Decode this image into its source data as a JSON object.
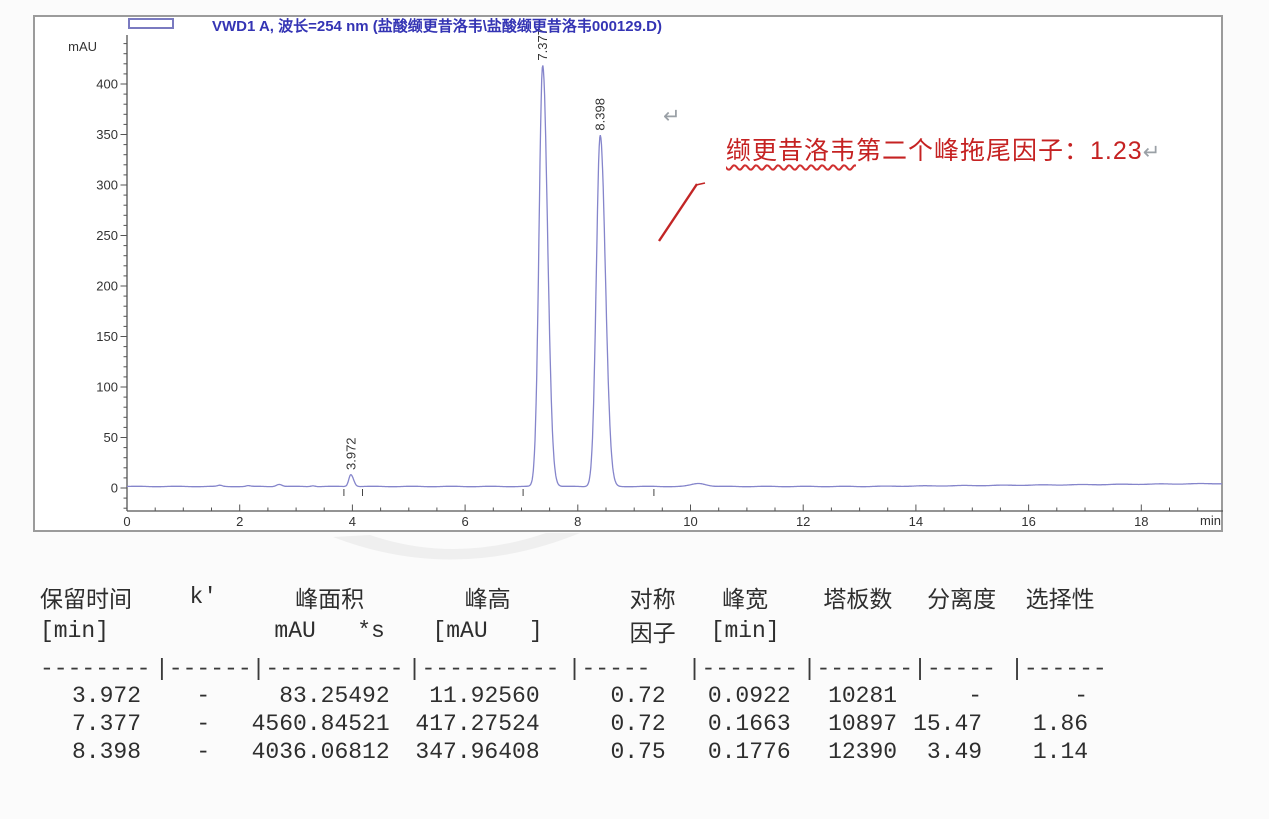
{
  "chart_data": {
    "type": "line",
    "title": "VWD1 A, 波长=254 nm (盐酸缬更昔洛韦\\盐酸缬更昔洛韦000129.D)",
    "ylabel": "mAU",
    "xlabel": "min",
    "xlim": [
      0,
      19.45
    ],
    "ylim": [
      -22,
      445
    ],
    "x_ticks": [
      0,
      2,
      4,
      6,
      8,
      10,
      12,
      14,
      16,
      18
    ],
    "y_ticks": [
      0,
      50,
      100,
      150,
      200,
      250,
      300,
      350,
      400
    ],
    "grid": false,
    "legend_position": "top-left",
    "trace_color": "#8585cb",
    "baseline_mau": 1.5,
    "peaks": [
      {
        "label": "3.972",
        "rt_min": 3.972,
        "height_mau": 11.9256,
        "half_width_min": 0.0922
      },
      {
        "label": "7.377",
        "rt_min": 7.377,
        "height_mau": 417.27524,
        "half_width_min": 0.1663
      },
      {
        "label": "8.398",
        "rt_min": 8.398,
        "height_mau": 347.96408,
        "half_width_min": 0.1776
      }
    ],
    "integration_marks_min": [
      3.85,
      4.18,
      7.03,
      9.35
    ]
  },
  "annotation": {
    "underlined": "缬更昔洛韦",
    "rest": "第二个峰拖尾因子：1.23",
    "return_mark": "↵",
    "color": "#c52222"
  },
  "floating_return_mark": "↵",
  "table": {
    "h1": [
      "保留时间",
      "k'",
      "峰面积",
      "峰高",
      "对称",
      "峰宽",
      "塔板数",
      "分离度",
      "选择性"
    ],
    "h2": [
      "[min]",
      "",
      "mAU   *s",
      "[mAU   ]",
      "因子",
      "[min]",
      "",
      "",
      ""
    ],
    "sep": [
      "--------",
      "|------",
      "|----------",
      "|----------",
      "|-----",
      "|-------",
      "|-------",
      "|-----",
      "|------"
    ],
    "rows": [
      [
        "3.972",
        "-",
        "83.25492",
        "11.92560",
        "0.72",
        "0.0922",
        "10281",
        "-",
        "-"
      ],
      [
        "7.377",
        "-",
        "4560.84521",
        "417.27524",
        "0.72",
        "0.1663",
        "10897",
        "15.47",
        "1.86"
      ],
      [
        "8.398",
        "-",
        "4036.06812",
        "347.96408",
        "0.75",
        "0.1776",
        "12390",
        "3.49",
        "1.14"
      ]
    ]
  }
}
